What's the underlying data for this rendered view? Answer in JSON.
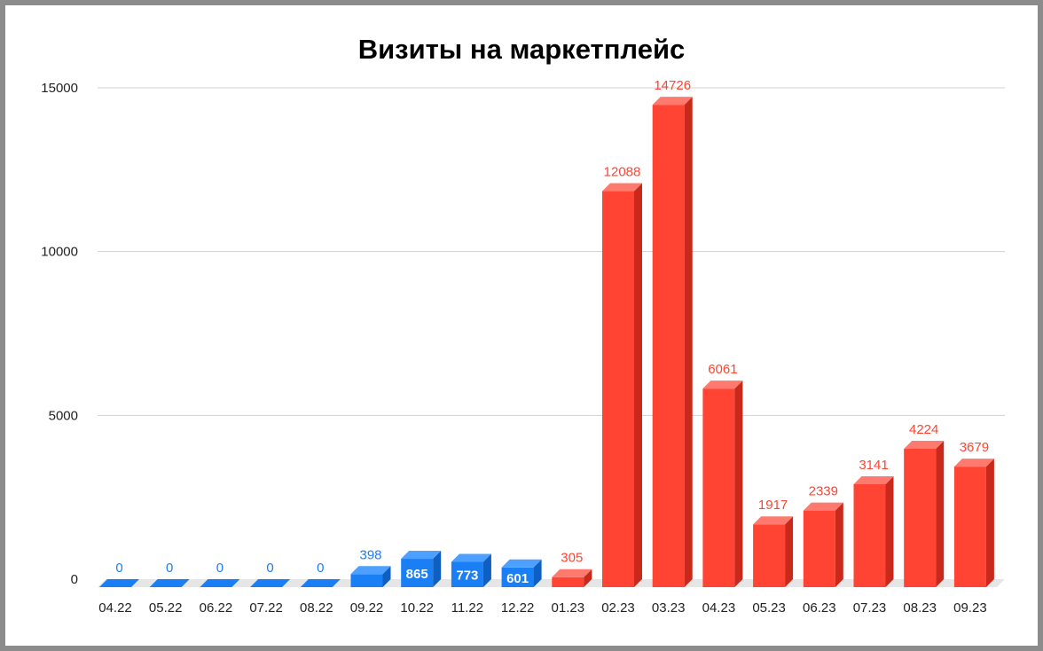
{
  "chart_data": {
    "type": "bar",
    "title": "Визиты на маркетплейс",
    "xlabel": "",
    "ylabel": "",
    "ylim": [
      0,
      15000
    ],
    "yticks": [
      0,
      5000,
      10000,
      15000
    ],
    "grid": true,
    "legend": "none",
    "categories": [
      "04.22",
      "05.22",
      "06.22",
      "07.22",
      "08.22",
      "09.22",
      "10.22",
      "11.22",
      "12.22",
      "01.23",
      "02.23",
      "03.23",
      "04.23",
      "05.23",
      "06.23",
      "07.23",
      "08.23",
      "09.23"
    ],
    "values": [
      0,
      0,
      0,
      0,
      0,
      398,
      865,
      773,
      601,
      305,
      12088,
      14726,
      6061,
      1917,
      2339,
      3141,
      4224,
      3679
    ],
    "colors": {
      "blue_front": "#1a7ef5",
      "blue_top": "#4da0ff",
      "blue_side": "#0d5fc2",
      "blue_label": "#1a7ef5",
      "red_front": "#ff4433",
      "red_top": "#ff7a6e",
      "red_side": "#c9291b",
      "red_label": "#ff4433",
      "grid": "#d0d0d0",
      "floor": "#e6e6e6"
    },
    "color_groups": [
      "blue",
      "blue",
      "blue",
      "blue",
      "blue",
      "blue",
      "blue",
      "blue",
      "blue",
      "red",
      "red",
      "red",
      "red",
      "red",
      "red",
      "red",
      "red",
      "red"
    ],
    "labels_inside": [
      false,
      false,
      false,
      false,
      false,
      false,
      true,
      true,
      true,
      false,
      false,
      false,
      false,
      false,
      false,
      false,
      false,
      false
    ]
  }
}
